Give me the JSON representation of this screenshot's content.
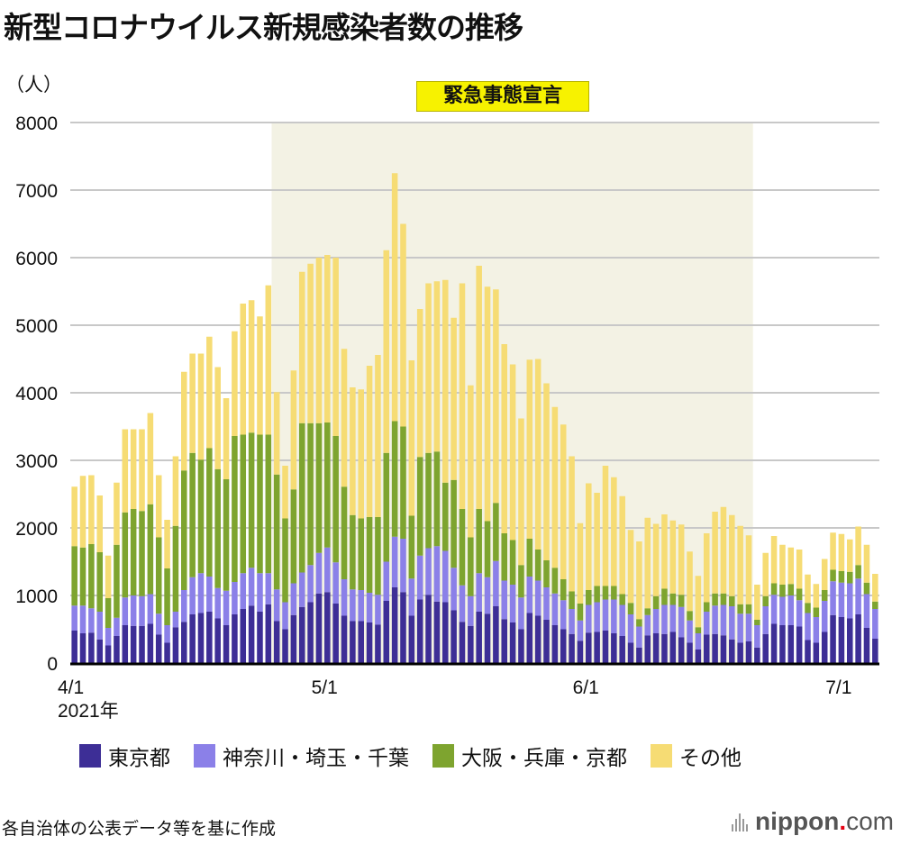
{
  "title": "新型コロナウイルス新規感染者数の推移",
  "unit_label": "（人）",
  "emergency_label": "緊急事態宣言",
  "source": "各自治体の公表データ等を基に作成",
  "logo": {
    "name": "nippon",
    "dot": ".",
    "suffix": "com"
  },
  "colors": {
    "tokyo": "#3d2e96",
    "kanto3": "#8b80e8",
    "kansai3": "#7ea42f",
    "other": "#f6dc74",
    "emergency_bg": "#f3f2e4",
    "emergency_label_bg": "#f7f200",
    "grid": "#c8c8c8"
  },
  "chart_data": {
    "type": "bar",
    "stacked": true,
    "title": "新型コロナウイルス新規感染者数の推移",
    "ylabel": "（人）",
    "xlabel": "",
    "ylim": [
      0,
      8000
    ],
    "yticks": [
      0,
      1000,
      2000,
      3000,
      4000,
      5000,
      6000,
      7000,
      8000
    ],
    "grid": true,
    "start_date": "2021-04-01",
    "xtick_labels": [
      {
        "day_index": 0,
        "label": "4/1",
        "sub": "2021年"
      },
      {
        "day_index": 30,
        "label": "5/1",
        "sub": ""
      },
      {
        "day_index": 61,
        "label": "6/1",
        "sub": ""
      },
      {
        "day_index": 91,
        "label": "7/1",
        "sub": ""
      }
    ],
    "shaded_range": {
      "label": "緊急事態宣言",
      "start_day_index": 24,
      "end_day_index": 80
    },
    "legend": "bottom",
    "series": [
      {
        "name": "東京都",
        "key": "tokyo",
        "values": [
          480,
          440,
          450,
          350,
          260,
          400,
          560,
          550,
          550,
          580,
          420,
          300,
          530,
          610,
          720,
          740,
          760,
          660,
          560,
          720,
          800,
          850,
          760,
          870,
          620,
          500,
          710,
          830,
          900,
          1030,
          1050,
          880,
          700,
          620,
          620,
          600,
          570,
          920,
          1120,
          1050,
          700,
          940,
          1010,
          910,
          900,
          780,
          610,
          550,
          760,
          730,
          840,
          650,
          600,
          500,
          740,
          700,
          640,
          560,
          500,
          430,
          330,
          450,
          460,
          480,
          440,
          400,
          300,
          230,
          410,
          440,
          430,
          460,
          380,
          300,
          200,
          420,
          430,
          410,
          350,
          300,
          320,
          230,
          430,
          580,
          560,
          560,
          540,
          340,
          300,
          460,
          710,
          680,
          660,
          720,
          520,
          360
        ],
        "__comment": ""
      },
      {
        "name": "神奈川・埼玉・千葉",
        "key": "kanto3",
        "values": [
          370,
          410,
          360,
          410,
          260,
          270,
          410,
          450,
          440,
          440,
          310,
          260,
          230,
          470,
          550,
          590,
          520,
          450,
          510,
          480,
          530,
          560,
          570,
          460,
          470,
          400,
          470,
          510,
          550,
          600,
          660,
          610,
          540,
          470,
          460,
          440,
          440,
          580,
          750,
          790,
          550,
          650,
          690,
          820,
          760,
          630,
          540,
          440,
          570,
          540,
          670,
          570,
          560,
          470,
          540,
          520,
          480,
          470,
          430,
          370,
          300,
          410,
          440,
          460,
          500,
          460,
          420,
          310,
          300,
          360,
          430,
          400,
          450,
          330,
          240,
          340,
          420,
          450,
          490,
          430,
          410,
          330,
          410,
          430,
          420,
          440,
          390,
          400,
          380,
          460,
          500,
          510,
          520,
          530,
          500,
          440
        ]
      },
      {
        "name": "大阪・兵庫・京都",
        "key": "kansai3",
        "values": [
          880,
          860,
          950,
          880,
          440,
          1080,
          1260,
          1280,
          1260,
          1330,
          1130,
          840,
          1270,
          1770,
          1840,
          1680,
          1900,
          1760,
          1650,
          2160,
          2050,
          2000,
          2050,
          2050,
          1700,
          1240,
          1390,
          2210,
          2100,
          1920,
          1850,
          1870,
          1370,
          1100,
          1060,
          1120,
          1150,
          1610,
          1710,
          1660,
          930,
          1460,
          1410,
          1400,
          1010,
          1300,
          1130,
          870,
          950,
          830,
          860,
          700,
          660,
          480,
          560,
          460,
          400,
          380,
          310,
          260,
          250,
          220,
          240,
          200,
          200,
          160,
          170,
          110,
          100,
          190,
          240,
          170,
          180,
          140,
          90,
          140,
          180,
          170,
          150,
          140,
          140,
          80,
          150,
          170,
          180,
          170,
          170,
          150,
          140,
          160,
          170,
          170,
          170,
          200,
          170,
          110
        ]
      },
      {
        "name": "その他",
        "key": "other",
        "values": [
          880,
          1060,
          1020,
          840,
          630,
          920,
          1230,
          1180,
          1210,
          1350,
          920,
          720,
          1030,
          1460,
          1470,
          1570,
          1650,
          1510,
          1200,
          1550,
          1940,
          1960,
          1750,
          2210,
          1220,
          780,
          1760,
          2240,
          2360,
          2450,
          2480,
          2640,
          2040,
          1890,
          1910,
          2240,
          2400,
          3000,
          3670,
          3000,
          2300,
          2190,
          2510,
          2520,
          3000,
          2400,
          3340,
          2250,
          3600,
          3470,
          3160,
          2800,
          2600,
          2170,
          2650,
          2820,
          2620,
          2380,
          2290,
          2000,
          1190,
          1580,
          1380,
          1780,
          1610,
          1450,
          1080,
          1150,
          1340,
          1070,
          1100,
          1080,
          1040,
          880,
          760,
          1020,
          1210,
          1280,
          1200,
          1160,
          1020,
          520,
          640,
          700,
          590,
          540,
          580,
          420,
          350,
          460,
          550,
          550,
          480,
          570,
          560,
          410
        ]
      }
    ]
  }
}
